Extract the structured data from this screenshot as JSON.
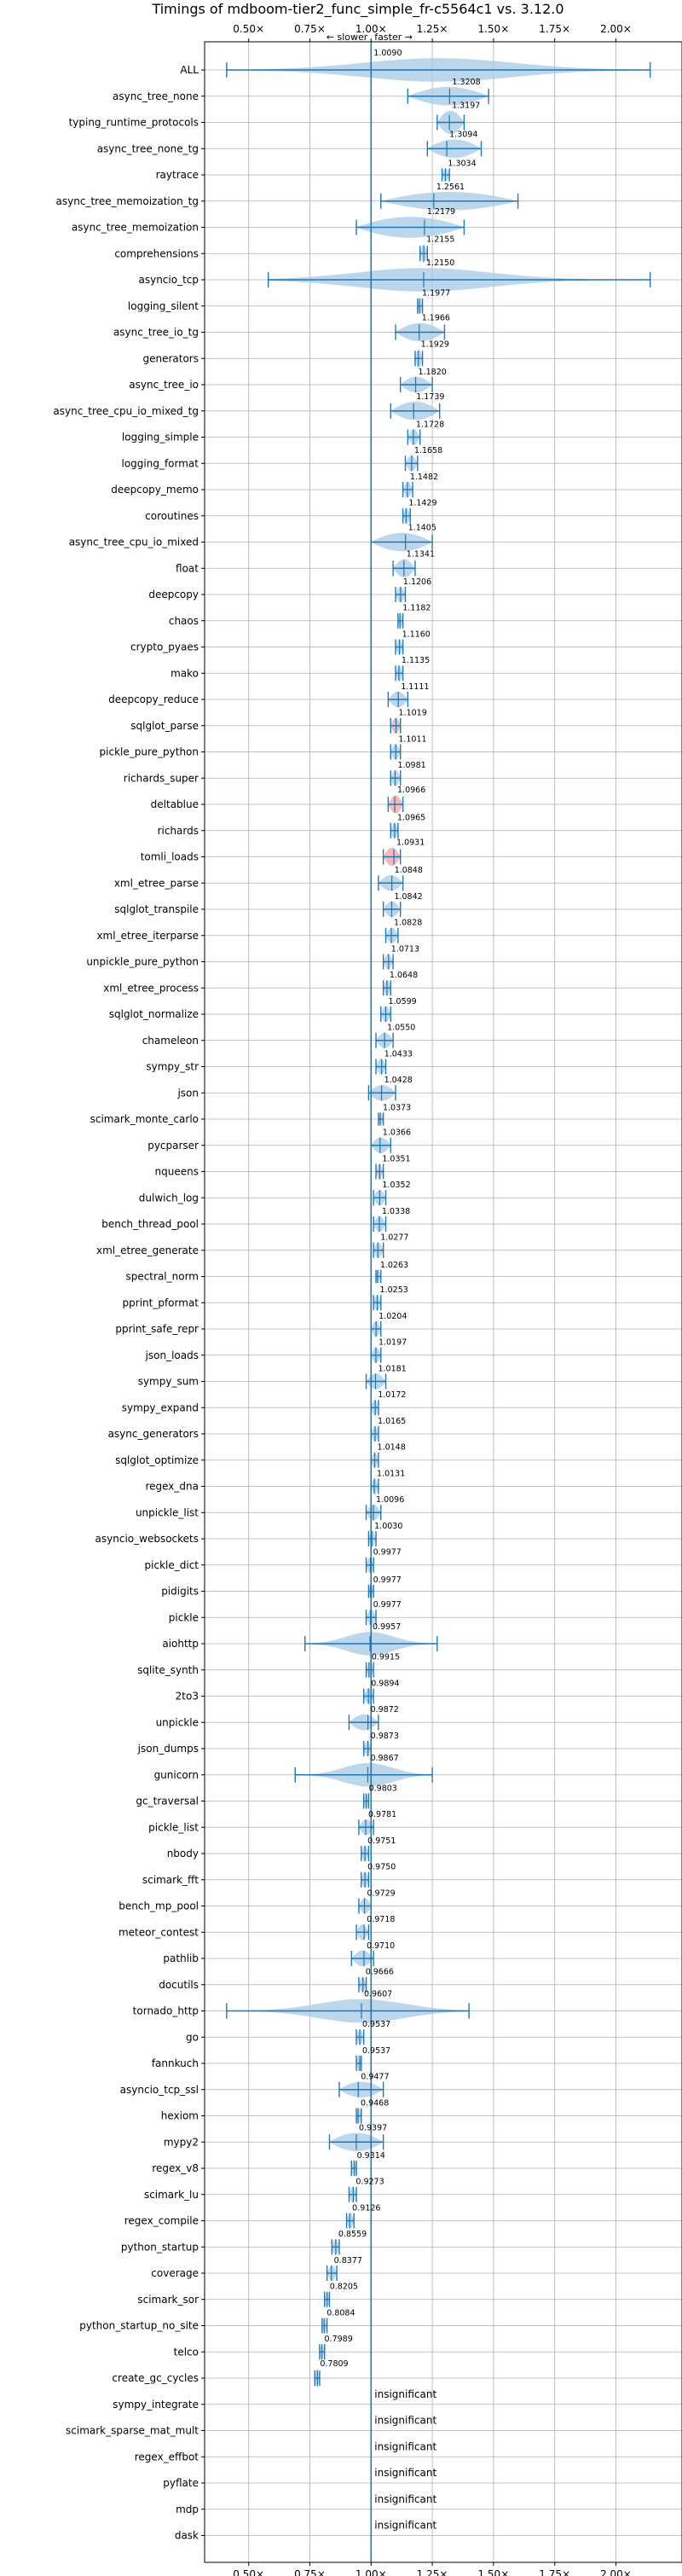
{
  "chart_data": {
    "type": "violin",
    "title": "Timings of mdboom-tier2_func_simple_fr-c5564c1 vs. 3.12.0",
    "xlim": [
      0.32,
      2.27
    ],
    "xticks": [
      0.5,
      0.75,
      1.0,
      1.25,
      1.5,
      1.75,
      2.0
    ],
    "xtick_labels": [
      "0.50×",
      "0.75×",
      "1.00×",
      "1.25×",
      "1.50×",
      "1.75×",
      "2.00×"
    ],
    "direction_labels": {
      "slower": "← slower",
      "faster": "faster →"
    },
    "grid": true,
    "reference_line": 1.0,
    "colors": {
      "violin": "#a6c8e6",
      "lines": "#1f77b4",
      "highlight": "#f08080",
      "grid": "#b0b0b0"
    },
    "insignificant_label": "insignificant",
    "benchmarks": [
      {
        "name": "ALL",
        "value": null,
        "label": "1.0090",
        "min": 0.41,
        "max": 2.14,
        "width": 0.45,
        "wide": true
      },
      {
        "name": "async_tree_none",
        "value": 1.3208,
        "label": "1.3208",
        "min": 1.15,
        "max": 1.48,
        "width": 0.35
      },
      {
        "name": "typing_runtime_protocols",
        "value": 1.3197,
        "label": "1.3197",
        "min": 1.27,
        "max": 1.38,
        "width": 0.45
      },
      {
        "name": "async_tree_none_tg",
        "value": 1.3094,
        "label": "1.3094",
        "min": 1.23,
        "max": 1.45,
        "width": 0.35
      },
      {
        "name": "raytrace",
        "value": 1.3034,
        "label": "1.3034",
        "min": 1.29,
        "max": 1.32,
        "width": 0.25
      },
      {
        "name": "async_tree_memoization_tg",
        "value": 1.2561,
        "label": "1.2561",
        "min": 1.04,
        "max": 1.6,
        "width": 0.35
      },
      {
        "name": "async_tree_memoization",
        "value": 1.2179,
        "label": "1.2179",
        "min": 0.94,
        "max": 1.38,
        "width": 0.4
      },
      {
        "name": "comprehensions",
        "value": 1.2155,
        "label": "1.2155",
        "min": 1.2,
        "max": 1.23,
        "width": 0.35
      },
      {
        "name": "asyncio_tcp",
        "value": 1.215,
        "label": "1.2150",
        "min": 0.58,
        "max": 2.14,
        "width": 0.45,
        "wide": true
      },
      {
        "name": "logging_silent",
        "value": 1.1977,
        "label": "1.1977",
        "min": 1.19,
        "max": 1.21,
        "width": 0.3
      },
      {
        "name": "async_tree_io_tg",
        "value": 1.1966,
        "label": "1.1966",
        "min": 1.1,
        "max": 1.3,
        "width": 0.35
      },
      {
        "name": "generators",
        "value": 1.1929,
        "label": "1.1929",
        "min": 1.18,
        "max": 1.21,
        "width": 0.35
      },
      {
        "name": "async_tree_io",
        "value": 1.182,
        "label": "1.1820",
        "min": 1.12,
        "max": 1.25,
        "width": 0.3
      },
      {
        "name": "async_tree_cpu_io_mixed_tg",
        "value": 1.1739,
        "label": "1.1739",
        "min": 1.08,
        "max": 1.28,
        "width": 0.35
      },
      {
        "name": "logging_simple",
        "value": 1.1728,
        "label": "1.1728",
        "min": 1.15,
        "max": 1.2,
        "width": 0.3
      },
      {
        "name": "logging_format",
        "value": 1.1658,
        "label": "1.1658",
        "min": 1.14,
        "max": 1.19,
        "width": 0.3
      },
      {
        "name": "deepcopy_memo",
        "value": 1.1482,
        "label": "1.1482",
        "min": 1.13,
        "max": 1.17,
        "width": 0.3
      },
      {
        "name": "coroutines",
        "value": 1.1429,
        "label": "1.1429",
        "min": 1.13,
        "max": 1.16,
        "width": 0.3
      },
      {
        "name": "async_tree_cpu_io_mixed",
        "value": 1.1405,
        "label": "1.1405",
        "min": 1.0,
        "max": 1.25,
        "width": 0.35
      },
      {
        "name": "float",
        "value": 1.1341,
        "label": "1.1341",
        "min": 1.09,
        "max": 1.18,
        "width": 0.35
      },
      {
        "name": "deepcopy",
        "value": 1.1206,
        "label": "1.1206",
        "min": 1.1,
        "max": 1.14,
        "width": 0.3
      },
      {
        "name": "chaos",
        "value": 1.1182,
        "label": "1.1182",
        "min": 1.11,
        "max": 1.13,
        "width": 0.3
      },
      {
        "name": "crypto_pyaes",
        "value": 1.116,
        "label": "1.1160",
        "min": 1.1,
        "max": 1.13,
        "width": 0.3
      },
      {
        "name": "mako",
        "value": 1.1135,
        "label": "1.1135",
        "min": 1.1,
        "max": 1.13,
        "width": 0.3
      },
      {
        "name": "deepcopy_reduce",
        "value": 1.1111,
        "label": "1.1111",
        "min": 1.07,
        "max": 1.15,
        "width": 0.3
      },
      {
        "name": "sqlglot_parse",
        "value": 1.1019,
        "label": "1.1019",
        "min": 1.08,
        "max": 1.12,
        "width": 0.3,
        "highlight": true
      },
      {
        "name": "pickle_pure_python",
        "value": 1.1011,
        "label": "1.1011",
        "min": 1.08,
        "max": 1.12,
        "width": 0.3
      },
      {
        "name": "richards_super",
        "value": 1.0981,
        "label": "1.0981",
        "min": 1.08,
        "max": 1.12,
        "width": 0.3
      },
      {
        "name": "deltablue",
        "value": 1.0966,
        "label": "1.0966",
        "min": 1.07,
        "max": 1.13,
        "width": 0.35,
        "highlight": true
      },
      {
        "name": "richards",
        "value": 1.0965,
        "label": "1.0965",
        "min": 1.08,
        "max": 1.11,
        "width": 0.3
      },
      {
        "name": "tomli_loads",
        "value": 1.0931,
        "label": "1.0931",
        "min": 1.05,
        "max": 1.12,
        "width": 0.35,
        "highlight": true
      },
      {
        "name": "xml_etree_parse",
        "value": 1.0848,
        "label": "1.0848",
        "min": 1.03,
        "max": 1.13,
        "width": 0.3
      },
      {
        "name": "sqlglot_transpile",
        "value": 1.0842,
        "label": "1.0842",
        "min": 1.05,
        "max": 1.12,
        "width": 0.3
      },
      {
        "name": "xml_etree_iterparse",
        "value": 1.0828,
        "label": "1.0828",
        "min": 1.06,
        "max": 1.11,
        "width": 0.3
      },
      {
        "name": "unpickle_pure_python",
        "value": 1.0713,
        "label": "1.0713",
        "min": 1.05,
        "max": 1.09,
        "width": 0.3
      },
      {
        "name": "xml_etree_process",
        "value": 1.0648,
        "label": "1.0648",
        "min": 1.05,
        "max": 1.08,
        "width": 0.3
      },
      {
        "name": "sqlglot_normalize",
        "value": 1.0599,
        "label": "1.0599",
        "min": 1.04,
        "max": 1.08,
        "width": 0.3
      },
      {
        "name": "chameleon",
        "value": 1.055,
        "label": "1.0550",
        "min": 1.02,
        "max": 1.09,
        "width": 0.3
      },
      {
        "name": "sympy_str",
        "value": 1.0433,
        "label": "1.0433",
        "min": 1.02,
        "max": 1.06,
        "width": 0.3
      },
      {
        "name": "json",
        "value": 1.0428,
        "label": "1.0428",
        "min": 0.99,
        "max": 1.1,
        "width": 0.3
      },
      {
        "name": "scimark_monte_carlo",
        "value": 1.0373,
        "label": "1.0373",
        "min": 1.03,
        "max": 1.05,
        "width": 0.25
      },
      {
        "name": "pycparser",
        "value": 1.0366,
        "label": "1.0366",
        "min": 1.0,
        "max": 1.08,
        "width": 0.3
      },
      {
        "name": "nqueens",
        "value": 1.0351,
        "label": "1.0351",
        "min": 1.02,
        "max": 1.05,
        "width": 0.3
      },
      {
        "name": "dulwich_log",
        "value": 1.0352,
        "label": "1.0352",
        "min": 1.01,
        "max": 1.06,
        "width": 0.3
      },
      {
        "name": "bench_thread_pool",
        "value": 1.0338,
        "label": "1.0338",
        "min": 1.01,
        "max": 1.06,
        "width": 0.3
      },
      {
        "name": "xml_etree_generate",
        "value": 1.0277,
        "label": "1.0277",
        "min": 1.01,
        "max": 1.05,
        "width": 0.3
      },
      {
        "name": "spectral_norm",
        "value": 1.0263,
        "label": "1.0263",
        "min": 1.02,
        "max": 1.04,
        "width": 0.25
      },
      {
        "name": "pprint_pformat",
        "value": 1.0253,
        "label": "1.0253",
        "min": 1.01,
        "max": 1.04,
        "width": 0.3
      },
      {
        "name": "pprint_safe_repr",
        "value": 1.0204,
        "label": "1.0204",
        "min": 1.0,
        "max": 1.04,
        "width": 0.3
      },
      {
        "name": "json_loads",
        "value": 1.0197,
        "label": "1.0197",
        "min": 1.0,
        "max": 1.04,
        "width": 0.3
      },
      {
        "name": "sympy_sum",
        "value": 1.0181,
        "label": "1.0181",
        "min": 0.98,
        "max": 1.06,
        "width": 0.3
      },
      {
        "name": "sympy_expand",
        "value": 1.0172,
        "label": "1.0172",
        "min": 1.0,
        "max": 1.03,
        "width": 0.3
      },
      {
        "name": "async_generators",
        "value": 1.0165,
        "label": "1.0165",
        "min": 1.0,
        "max": 1.03,
        "width": 0.3
      },
      {
        "name": "sqlglot_optimize",
        "value": 1.0148,
        "label": "1.0148",
        "min": 1.0,
        "max": 1.03,
        "width": 0.3
      },
      {
        "name": "regex_dna",
        "value": 1.0131,
        "label": "1.0131",
        "min": 1.0,
        "max": 1.03,
        "width": 0.3
      },
      {
        "name": "unpickle_list",
        "value": 1.0096,
        "label": "1.0096",
        "min": 0.98,
        "max": 1.04,
        "width": 0.3
      },
      {
        "name": "asyncio_websockets",
        "value": 1.003,
        "label": "1.0030",
        "min": 0.99,
        "max": 1.02,
        "width": 0.3
      },
      {
        "name": "pickle_dict",
        "value": 0.9977,
        "label": "0.9977",
        "min": 0.98,
        "max": 1.01,
        "width": 0.3
      },
      {
        "name": "pidigits",
        "value": 0.9977,
        "label": "0.9977",
        "min": 0.99,
        "max": 1.01,
        "width": 0.25
      },
      {
        "name": "pickle",
        "value": 0.9977,
        "label": "0.9977",
        "min": 0.98,
        "max": 1.02,
        "width": 0.3
      },
      {
        "name": "aiohttp",
        "value": 0.9957,
        "label": "0.9957",
        "min": 0.73,
        "max": 1.27,
        "width": 0.45,
        "wide": true
      },
      {
        "name": "sqlite_synth",
        "value": 0.9915,
        "label": "0.9915",
        "min": 0.98,
        "max": 1.01,
        "width": 0.3
      },
      {
        "name": "2to3",
        "value": 0.9894,
        "label": "0.9894",
        "min": 0.97,
        "max": 1.01,
        "width": 0.3
      },
      {
        "name": "unpickle",
        "value": 0.9872,
        "label": "0.9872",
        "min": 0.91,
        "max": 1.03,
        "width": 0.3
      },
      {
        "name": "json_dumps",
        "value": 0.9873,
        "label": "0.9873",
        "min": 0.97,
        "max": 1.0,
        "width": 0.3
      },
      {
        "name": "gunicorn",
        "value": 0.9867,
        "label": "0.9867",
        "min": 0.69,
        "max": 1.25,
        "width": 0.45,
        "wide": true
      },
      {
        "name": "gc_traversal",
        "value": 0.9803,
        "label": "0.9803",
        "min": 0.97,
        "max": 0.99,
        "width": 0.3
      },
      {
        "name": "pickle_list",
        "value": 0.9781,
        "label": "0.9781",
        "min": 0.95,
        "max": 1.01,
        "width": 0.3
      },
      {
        "name": "nbody",
        "value": 0.9751,
        "label": "0.9751",
        "min": 0.96,
        "max": 0.99,
        "width": 0.3
      },
      {
        "name": "scimark_fft",
        "value": 0.975,
        "label": "0.9750",
        "min": 0.96,
        "max": 0.99,
        "width": 0.3
      },
      {
        "name": "bench_mp_pool",
        "value": 0.9729,
        "label": "0.9729",
        "min": 0.95,
        "max": 1.0,
        "width": 0.3
      },
      {
        "name": "meteor_contest",
        "value": 0.9718,
        "label": "0.9718",
        "min": 0.94,
        "max": 0.99,
        "width": 0.3
      },
      {
        "name": "pathlib",
        "value": 0.971,
        "label": "0.9710",
        "min": 0.92,
        "max": 1.01,
        "width": 0.3
      },
      {
        "name": "docutils",
        "value": 0.9666,
        "label": "0.9666",
        "min": 0.95,
        "max": 0.98,
        "width": 0.3
      },
      {
        "name": "tornado_http",
        "value": 0.9607,
        "label": "0.9607",
        "min": 0.41,
        "max": 1.4,
        "width": 0.45,
        "wide": true
      },
      {
        "name": "go",
        "value": 0.9537,
        "label": "0.9537",
        "min": 0.94,
        "max": 0.97,
        "width": 0.3
      },
      {
        "name": "fannkuch",
        "value": 0.9537,
        "label": "0.9537",
        "min": 0.94,
        "max": 0.96,
        "width": 0.3
      },
      {
        "name": "asyncio_tcp_ssl",
        "value": 0.9477,
        "label": "0.9477",
        "min": 0.87,
        "max": 1.05,
        "width": 0.3
      },
      {
        "name": "hexiom",
        "value": 0.9468,
        "label": "0.9468",
        "min": 0.94,
        "max": 0.96,
        "width": 0.3
      },
      {
        "name": "mypy2",
        "value": 0.9397,
        "label": "0.9397",
        "min": 0.83,
        "max": 1.05,
        "width": 0.35
      },
      {
        "name": "regex_v8",
        "value": 0.9314,
        "label": "0.9314",
        "min": 0.92,
        "max": 0.94,
        "width": 0.3
      },
      {
        "name": "scimark_lu",
        "value": 0.9273,
        "label": "0.9273",
        "min": 0.91,
        "max": 0.94,
        "width": 0.3
      },
      {
        "name": "regex_compile",
        "value": 0.9126,
        "label": "0.9126",
        "min": 0.9,
        "max": 0.93,
        "width": 0.3
      },
      {
        "name": "python_startup",
        "value": 0.8559,
        "label": "0.8559",
        "min": 0.84,
        "max": 0.87,
        "width": 0.3
      },
      {
        "name": "coverage",
        "value": 0.8377,
        "label": "0.8377",
        "min": 0.82,
        "max": 0.86,
        "width": 0.3
      },
      {
        "name": "scimark_sor",
        "value": 0.8205,
        "label": "0.8205",
        "min": 0.81,
        "max": 0.83,
        "width": 0.3
      },
      {
        "name": "python_startup_no_site",
        "value": 0.8084,
        "label": "0.8084",
        "min": 0.8,
        "max": 0.82,
        "width": 0.3
      },
      {
        "name": "telco",
        "value": 0.7989,
        "label": "0.7989",
        "min": 0.79,
        "max": 0.81,
        "width": 0.3
      },
      {
        "name": "create_gc_cycles",
        "value": 0.7809,
        "label": "0.7809",
        "min": 0.77,
        "max": 0.79,
        "width": 0.35
      },
      {
        "name": "sympy_integrate",
        "value": null,
        "label": "insignificant",
        "insignificant": true
      },
      {
        "name": "scimark_sparse_mat_mult",
        "value": null,
        "label": "insignificant",
        "insignificant": true
      },
      {
        "name": "regex_effbot",
        "value": null,
        "label": "insignificant",
        "insignificant": true
      },
      {
        "name": "pyflate",
        "value": null,
        "label": "insignificant",
        "insignificant": true
      },
      {
        "name": "mdp",
        "value": null,
        "label": "insignificant",
        "insignificant": true
      },
      {
        "name": "dask",
        "value": null,
        "label": "insignificant",
        "insignificant": true
      }
    ]
  }
}
